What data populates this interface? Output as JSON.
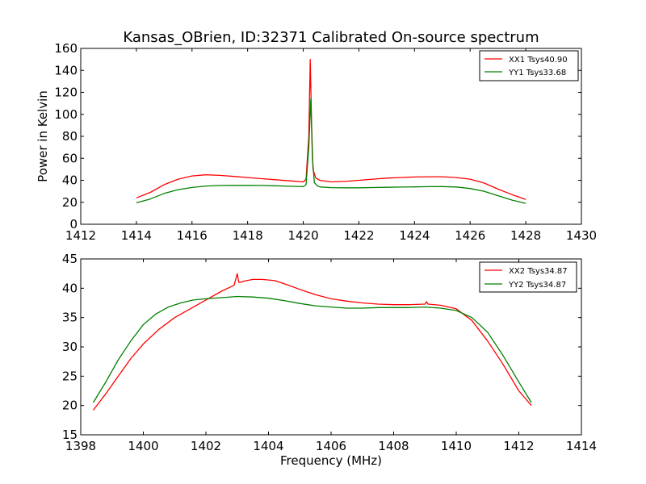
{
  "title": "Kansas_OBrien, ID:32371 Calibrated On-source spectrum",
  "xlabel": "Frequency (MHz)",
  "ylabel": "Power in Kelvin",
  "chart_data": [
    {
      "type": "line",
      "xlim": [
        1412,
        1430
      ],
      "ylim": [
        0,
        160
      ],
      "xticks": [
        "1412",
        "1414",
        "1416",
        "1418",
        "1420",
        "1422",
        "1424",
        "1426",
        "1428",
        "1430"
      ],
      "yticks": [
        "0",
        "20",
        "40",
        "60",
        "80",
        "100",
        "120",
        "140",
        "160"
      ],
      "legend_position": "top-right",
      "series": [
        {
          "name": "XX1 Tsys40.90",
          "color": "#ff0000",
          "x": [
            1414.0,
            1414.5,
            1415.0,
            1415.5,
            1416.0,
            1416.5,
            1417.0,
            1417.5,
            1418.0,
            1418.5,
            1419.0,
            1419.5,
            1420.0,
            1420.1,
            1420.2,
            1420.25,
            1420.3,
            1420.35,
            1420.45,
            1420.6,
            1421.0,
            1421.5,
            1422.0,
            1422.5,
            1423.0,
            1423.5,
            1424.0,
            1424.5,
            1425.0,
            1425.5,
            1426.0,
            1426.5,
            1427.0,
            1427.5,
            1428.0
          ],
          "y": [
            24,
            29,
            36,
            41,
            44,
            45,
            44.5,
            43.5,
            42.5,
            41.5,
            40.5,
            39.5,
            38.5,
            41,
            80,
            150,
            90,
            50,
            42,
            40,
            38.5,
            39,
            40,
            41,
            42,
            42.5,
            43,
            43.2,
            43.2,
            42.5,
            41,
            37.5,
            32,
            27,
            22.5
          ]
        },
        {
          "name": "YY1 Tsys33.68",
          "color": "#008000",
          "x": [
            1414.0,
            1414.5,
            1415.0,
            1415.5,
            1416.0,
            1416.5,
            1417.0,
            1417.5,
            1418.0,
            1418.5,
            1419.0,
            1419.5,
            1420.0,
            1420.1,
            1420.2,
            1420.27,
            1420.33,
            1420.4,
            1420.5,
            1420.6,
            1421.0,
            1421.5,
            1422.0,
            1422.5,
            1423.0,
            1423.5,
            1424.0,
            1424.5,
            1425.0,
            1425.5,
            1426.0,
            1426.5,
            1427.0,
            1427.5,
            1428.0
          ],
          "y": [
            19.5,
            23,
            28,
            31.5,
            33.5,
            34.8,
            35.3,
            35.4,
            35.4,
            35.3,
            35,
            34.6,
            34.2,
            36,
            70,
            114,
            60,
            38,
            35,
            34,
            33.3,
            33.2,
            33.2,
            33.4,
            33.6,
            33.8,
            34,
            34.2,
            34.3,
            33.9,
            32.5,
            30,
            26,
            22,
            19
          ]
        }
      ]
    },
    {
      "type": "line",
      "xlim": [
        1398,
        1414
      ],
      "ylim": [
        15,
        45
      ],
      "xticks": [
        "1398",
        "1400",
        "1402",
        "1404",
        "1406",
        "1408",
        "1410",
        "1412",
        "1414"
      ],
      "yticks": [
        "15",
        "20",
        "25",
        "30",
        "35",
        "40",
        "45"
      ],
      "legend_position": "top-right",
      "series": [
        {
          "name": "XX2 Tsys34.87",
          "color": "#ff0000",
          "x": [
            1398.4,
            1398.8,
            1399.2,
            1399.6,
            1400.0,
            1400.5,
            1401.0,
            1401.5,
            1402.0,
            1402.5,
            1402.9,
            1403.0,
            1403.05,
            1403.1,
            1403.2,
            1403.5,
            1403.8,
            1404.2,
            1404.6,
            1405.0,
            1405.5,
            1406.0,
            1406.5,
            1407.0,
            1407.5,
            1408.0,
            1408.5,
            1409.0,
            1409.05,
            1409.1,
            1409.5,
            1410.0,
            1410.5,
            1411.0,
            1411.5,
            1412.0,
            1412.4
          ],
          "y": [
            19.2,
            22,
            25,
            28,
            30.5,
            33,
            35,
            36.5,
            38,
            39.5,
            40.5,
            42.5,
            41,
            41,
            41.2,
            41.5,
            41.5,
            41.3,
            40.6,
            39.8,
            38.9,
            38.2,
            37.8,
            37.5,
            37.3,
            37.2,
            37.2,
            37.3,
            37.7,
            37.3,
            37.1,
            36.5,
            34.5,
            31,
            27,
            22.5,
            20
          ]
        },
        {
          "name": "YY2 Tsys34.87",
          "color": "#008000",
          "x": [
            1398.4,
            1398.8,
            1399.2,
            1399.6,
            1400.0,
            1400.4,
            1400.8,
            1401.2,
            1401.6,
            1402.0,
            1402.5,
            1403.0,
            1403.5,
            1404.0,
            1404.5,
            1405.0,
            1405.5,
            1406.0,
            1406.5,
            1407.0,
            1407.5,
            1408.0,
            1408.5,
            1409.0,
            1409.5,
            1410.0,
            1410.5,
            1411.0,
            1411.5,
            1412.0,
            1412.4
          ],
          "y": [
            20.5,
            24,
            27.8,
            31,
            33.8,
            35.6,
            36.8,
            37.5,
            38,
            38.2,
            38.4,
            38.6,
            38.5,
            38.3,
            37.9,
            37.4,
            37,
            36.8,
            36.6,
            36.6,
            36.7,
            36.7,
            36.7,
            36.8,
            36.6,
            36.2,
            35,
            32.5,
            28.5,
            24,
            20.5
          ]
        }
      ]
    }
  ]
}
